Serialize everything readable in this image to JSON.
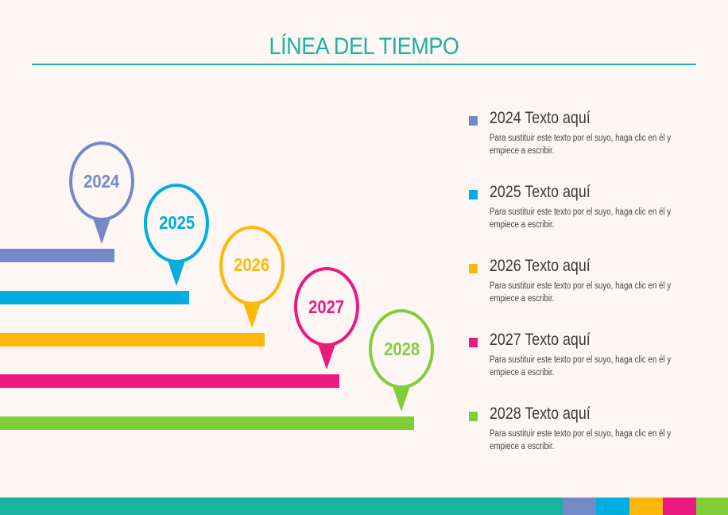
{
  "title": "LÍNEA DEL TIEMPO",
  "colors": {
    "accent": "#1ab3a0",
    "c2024": "#7489c8",
    "c2025": "#00ade0",
    "c2026": "#ffb80a",
    "c2027": "#ea1a7f",
    "c2028": "#80cf3a"
  },
  "milestones": [
    {
      "year": "2024",
      "heading": "2024 Texto aquí",
      "desc": "Para sustituir este texto por el suyo, haga clic en él y empiece a escribir."
    },
    {
      "year": "2025",
      "heading": "2025 Texto aquí",
      "desc": "Para sustituir este texto por el suyo, haga clic en él y empiece a escribir."
    },
    {
      "year": "2026",
      "heading": "2026 Texto aquí",
      "desc": "Para sustituir este texto por el suyo, haga clic en él y empiece a escribir."
    },
    {
      "year": "2027",
      "heading": "2027 Texto aquí",
      "desc": "Para sustituir este texto por el suyo, haga clic en él y empiece a escribir."
    },
    {
      "year": "2028",
      "heading": "2028 Texto aquí",
      "desc": "Para sustituir este texto por el suyo, haga clic en él y empiece a escribir."
    }
  ]
}
